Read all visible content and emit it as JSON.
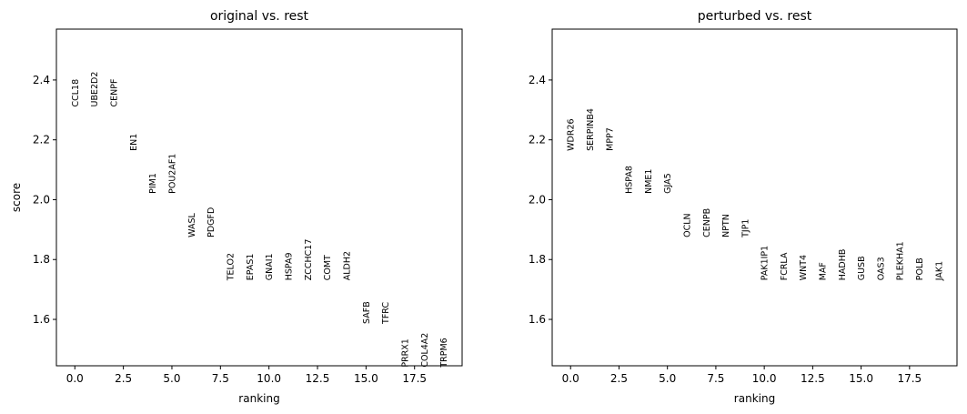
{
  "chart_data": [
    {
      "type": "rank-text",
      "title": "original vs. rest",
      "xlabel": "ranking",
      "ylabel": "score",
      "x": [
        0,
        1,
        2,
        3,
        4,
        5,
        6,
        7,
        8,
        9,
        10,
        11,
        12,
        13,
        14,
        15,
        16,
        17,
        18,
        19
      ],
      "genes": [
        "CCL18",
        "UBE2D2",
        "CENPF",
        "EN1",
        "PIM1",
        "POU2AF1",
        "WASL",
        "PDGFD",
        "TELO2",
        "EPAS1",
        "GNAI1",
        "HSPA9",
        "ZCCHC17",
        "COMT",
        "ALDH2",
        "SAFB",
        "TFRC",
        "PRRX1",
        "COL4A2",
        "TRPM6"
      ],
      "values": [
        2.31,
        2.31,
        2.31,
        2.163,
        2.02,
        2.02,
        1.874,
        1.874,
        1.73,
        1.73,
        1.73,
        1.73,
        1.73,
        1.73,
        1.73,
        1.585,
        1.585,
        1.44,
        1.44,
        1.44
      ],
      "xlim": [
        -0.95,
        19.95
      ],
      "ylim": [
        1.445,
        2.57
      ],
      "xticks": [
        {
          "value": 0,
          "label": "0.0"
        },
        2.5,
        {
          "value": 5,
          "label": "5.0"
        },
        7.5,
        {
          "value": 10,
          "label": "10.0"
        },
        12.5,
        {
          "value": 15,
          "label": "15.0"
        },
        17.5
      ],
      "yticks": [
        1.6,
        1.8,
        {
          "value": 2,
          "label": "2.0"
        },
        2.2,
        2.4
      ]
    },
    {
      "type": "rank-text",
      "title": "perturbed vs. rest",
      "xlabel": "ranking",
      "x": [
        0,
        1,
        2,
        3,
        4,
        5,
        6,
        7,
        8,
        9,
        10,
        11,
        12,
        13,
        14,
        15,
        16,
        17,
        18,
        19
      ],
      "genes": [
        "WDR26",
        "SERPINB4",
        "MPP7",
        "HSPA8",
        "NME1",
        "GJA5",
        "OCLN",
        "CENPB",
        "NPTN",
        "TJP1",
        "PAK1IP1",
        "FCRLA",
        "WNT4",
        "MAF",
        "HADHB",
        "GUSB",
        "OAS3",
        "PLEKHA1",
        "POLB",
        "JAK1"
      ],
      "values": [
        2.163,
        2.163,
        2.163,
        2.02,
        2.02,
        2.02,
        1.874,
        1.874,
        1.874,
        1.874,
        1.73,
        1.73,
        1.73,
        1.73,
        1.73,
        1.73,
        1.73,
        1.73,
        1.73,
        1.73
      ],
      "xlim": [
        -0.95,
        19.95
      ],
      "ylim": [
        1.445,
        2.57
      ],
      "xticks": [
        {
          "value": 0,
          "label": "0.0"
        },
        2.5,
        {
          "value": 5,
          "label": "5.0"
        },
        7.5,
        {
          "value": 10,
          "label": "10.0"
        },
        12.5,
        {
          "value": 15,
          "label": "15.0"
        },
        17.5
      ],
      "yticks": [
        1.6,
        1.8,
        {
          "value": 2,
          "label": "2.0"
        },
        2.2,
        2.4
      ]
    }
  ]
}
